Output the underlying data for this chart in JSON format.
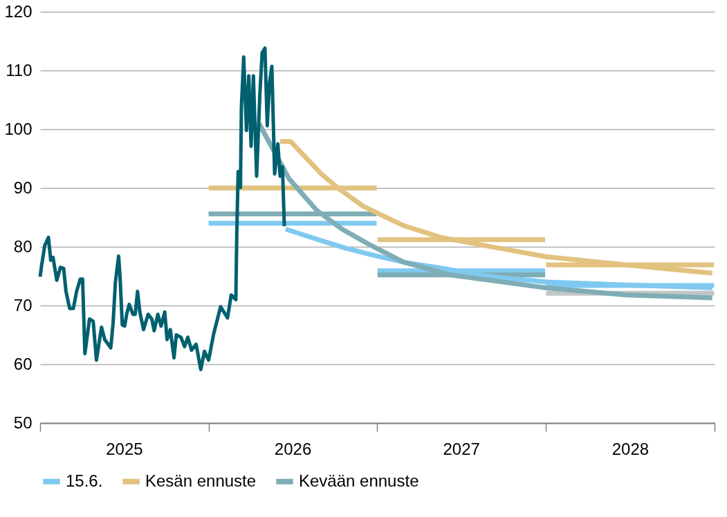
{
  "chart_data": {
    "type": "line",
    "xlim": [
      "2025-01-01",
      "2029-01-01"
    ],
    "ylim": [
      50,
      120
    ],
    "yticks": [
      50,
      60,
      70,
      80,
      90,
      100,
      110,
      120
    ],
    "xticks": [
      {
        "value": "2025-01-01",
        "label": null
      },
      {
        "value": "2025-07-02",
        "label": "2025"
      },
      {
        "value": "2026-01-01",
        "label": null
      },
      {
        "value": "2026-07-02",
        "label": "2026"
      },
      {
        "value": "2027-01-01",
        "label": null
      },
      {
        "value": "2027-07-02",
        "label": "2027"
      },
      {
        "value": "2028-01-01",
        "label": null
      },
      {
        "value": "2028-07-02",
        "label": "2028"
      },
      {
        "value": "2029-01-01",
        "label": null
      }
    ],
    "grid": "y",
    "legend": "bottom",
    "series": [
      {
        "color": "#7fc9f1",
        "x": [
          "2026-01-01",
          "2026-12-31",
          "2027-01-01",
          "2027-01-02",
          "2027-12-31",
          "2028-01-01",
          "2028-01-02",
          "2028-12-31"
        ],
        "values": [
          84.0,
          84.0,
          null,
          75.9,
          75.9,
          null,
          73.4,
          73.4
        ]
      },
      {
        "color": "#e2c27f",
        "x": [
          "2026-01-01",
          "2026-12-31",
          "2027-01-01",
          "2027-01-02",
          "2027-12-31",
          "2028-01-01",
          "2028-01-02",
          "2028-12-31"
        ],
        "values": [
          90.0,
          90.0,
          null,
          81.2,
          81.2,
          null,
          76.9,
          76.9
        ]
      },
      {
        "color": "#7fadb5",
        "x": [
          "2026-01-01",
          "2026-12-31",
          "2027-01-01",
          "2027-01-02",
          "2027-12-31"
        ],
        "values": [
          85.6,
          85.6,
          null,
          75.2,
          75.2
        ]
      },
      {
        "color": "#c2c6c6",
        "x": [
          "2028-01-02",
          "2028-12-31"
        ],
        "values": [
          72.1,
          72.1
        ]
      },
      {
        "name": "15.6.",
        "color": "#7fc9f1",
        "x": [
          "2026-06-17",
          "2026-07-18",
          "2026-09-08",
          "2026-10-28",
          "2026-12-17",
          "2027-03-03",
          "2027-05-19",
          "2027-08-24",
          "2028-01-03",
          "2028-06-24",
          "2028-12-27"
        ],
        "values": [
          83.0,
          82.2,
          80.9,
          79.7,
          78.7,
          77.3,
          76.4,
          75.0,
          74.0,
          73.5,
          73.0
        ]
      },
      {
        "name": "Kesän ennuste",
        "color": "#e2c27f",
        "x": [
          "2026-06-05",
          "2026-06-28",
          "2026-09-02",
          "2026-10-08",
          "2026-12-02",
          "2027-02-27",
          "2027-05-19",
          "2027-08-29",
          "2028-01-03",
          "2028-06-24",
          "2028-12-27"
        ],
        "values": [
          97.9,
          97.9,
          92.4,
          90.0,
          86.9,
          83.6,
          81.6,
          80.1,
          78.3,
          76.9,
          75.5
        ]
      },
      {
        "name": "Kevään ennuste",
        "color": "#7fadb5",
        "x": [
          "2026-04-20",
          "2026-06-24",
          "2026-08-23",
          "2026-10-17",
          "2026-12-17",
          "2027-02-27",
          "2027-06-09",
          "2028-01-03",
          "2028-06-24",
          "2028-12-27"
        ],
        "values": [
          101.0,
          91.6,
          86.2,
          83.0,
          80.3,
          77.4,
          75.2,
          73.0,
          71.8,
          71.3
        ]
      },
      {
        "color": "#00606f",
        "x": [
          "2025-01-01",
          "2025-01-04",
          "2025-01-11",
          "2025-01-19",
          "2025-01-24",
          "2025-01-29",
          "2025-02-06",
          "2025-02-14",
          "2025-02-21",
          "2025-02-26",
          "2025-03-06",
          "2025-03-14",
          "2025-03-21",
          "2025-03-29",
          "2025-04-03",
          "2025-04-08",
          "2025-04-18",
          "2025-04-26",
          "2025-05-03",
          "2025-05-14",
          "2025-05-21",
          "2025-06-03",
          "2025-06-08",
          "2025-06-13",
          "2025-06-20",
          "2025-06-23",
          "2025-06-28",
          "2025-07-03",
          "2025-07-08",
          "2025-07-13",
          "2025-07-21",
          "2025-07-26",
          "2025-07-31",
          "2025-08-05",
          "2025-08-13",
          "2025-08-23",
          "2025-08-31",
          "2025-09-05",
          "2025-09-13",
          "2025-09-20",
          "2025-09-28",
          "2025-10-03",
          "2025-10-10",
          "2025-10-18",
          "2025-10-23",
          "2025-11-02",
          "2025-11-10",
          "2025-11-17",
          "2025-11-25",
          "2025-12-05",
          "2025-12-15",
          "2025-12-23",
          "2026-01-01",
          "2026-01-12",
          "2026-01-27",
          "2026-02-11",
          "2026-02-19",
          "2026-03-01",
          "2026-03-03",
          "2026-03-06",
          "2026-03-11",
          "2026-03-13",
          "2026-03-18",
          "2026-03-24",
          "2026-03-29",
          "2026-04-03",
          "2026-04-08",
          "2026-04-15",
          "2026-04-22",
          "2026-04-27",
          "2026-05-03",
          "2026-05-08",
          "2026-05-13",
          "2026-05-18",
          "2026-05-24",
          "2026-05-31",
          "2026-06-05",
          "2026-06-10",
          "2026-06-14"
        ],
        "values": [
          74.9,
          76.7,
          80.2,
          81.6,
          77.7,
          78.2,
          74.3,
          76.5,
          76.3,
          72.4,
          69.5,
          69.5,
          72.4,
          74.5,
          74.5,
          61.8,
          67.7,
          67.3,
          60.7,
          66.3,
          64.2,
          62.8,
          66.9,
          73.9,
          78.4,
          75.1,
          66.7,
          66.5,
          68.7,
          70.2,
          68.5,
          68.5,
          72.4,
          68.9,
          65.9,
          68.5,
          67.7,
          65.7,
          68.5,
          66.5,
          68.9,
          64.2,
          65.9,
          61.1,
          65.0,
          64.6,
          63.0,
          64.6,
          62.4,
          63.4,
          59.1,
          62.2,
          60.7,
          65.2,
          69.8,
          67.9,
          71.8,
          71.0,
          82.3,
          92.8,
          90.1,
          103.7,
          112.3,
          99.8,
          109.1,
          97.1,
          109.1,
          92.0,
          106.0,
          113.0,
          113.8,
          100.6,
          108.0,
          110.7,
          92.4,
          97.5,
          92.0,
          93.6,
          83.5
        ]
      }
    ]
  }
}
